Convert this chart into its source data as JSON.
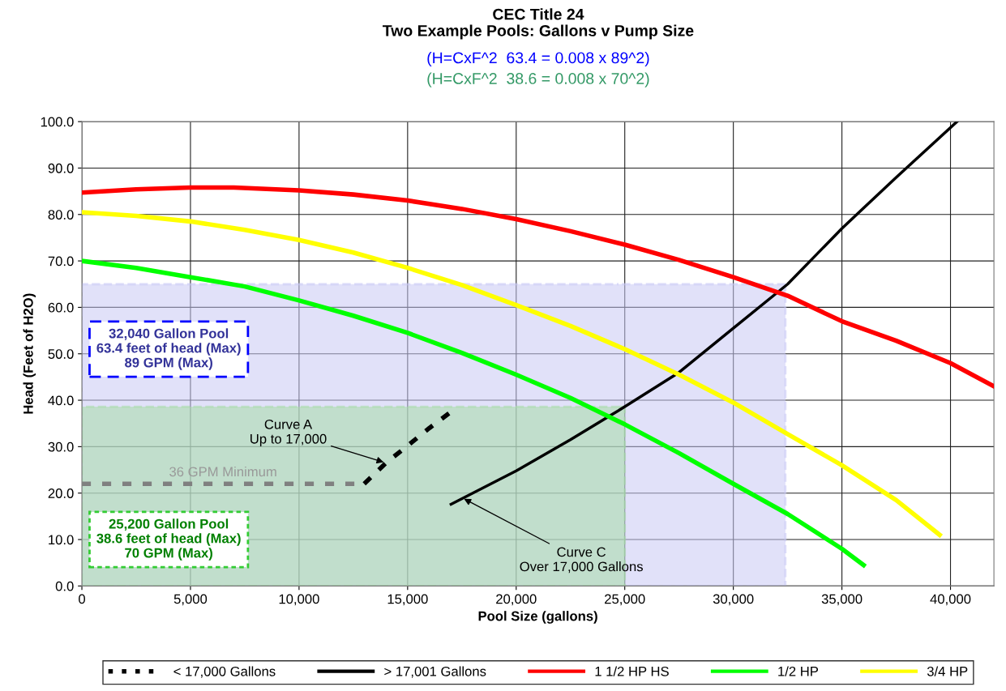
{
  "chart_data": {
    "type": "line",
    "title": "CEC Title 24\nTwo Example Pools: Gallons v Pump Size",
    "subtitle": "(H=CxF^2  63.4 = 0.008 x 89^2)\n(H=CxF^2  38.6 = 0.008 x 70^2)",
    "xlabel": "Pool Size (gallons)",
    "ylabel": "Head (Feet of H2O)",
    "xlim": [
      0,
      42000
    ],
    "xticks": [
      0,
      {
        "value": 5000,
        "label": "5,000"
      },
      {
        "value": 10000,
        "label": "10,000"
      },
      {
        "value": 15000,
        "label": "15,000"
      },
      {
        "value": 20000,
        "label": "20,000"
      },
      {
        "value": 25000,
        "label": "25,000"
      },
      {
        "value": 30000,
        "label": "30,000"
      },
      {
        "value": 35000,
        "label": "35,000"
      },
      {
        "value": 40000,
        "label": "40,000"
      }
    ],
    "ylim": [
      0,
      100
    ],
    "yticks": [
      {
        "value": 0,
        "label": "0.0"
      },
      {
        "value": 10,
        "label": "10.0"
      },
      {
        "value": 20,
        "label": "20.0"
      },
      {
        "value": 30,
        "label": "30.0"
      },
      {
        "value": 40,
        "label": "40.0"
      },
      {
        "value": 50,
        "label": "50.0"
      },
      {
        "value": 60,
        "label": "60.0"
      },
      {
        "value": 70,
        "label": "70.0"
      },
      {
        "value": 80,
        "label": "80.0"
      },
      {
        "value": 90,
        "label": "90.0"
      },
      {
        "value": 100,
        "label": "100.0"
      }
    ],
    "grid": true,
    "legend": "bottom",
    "series": [
      {
        "type": "area",
        "color": "#c8c8f4",
        "x": [
          0,
          32400
        ],
        "values": [
          65,
          65
        ]
      },
      {
        "type": "area",
        "color": "#a8dca8",
        "x": [
          0,
          25000
        ],
        "values": [
          38.6,
          38.6
        ]
      },
      {
        "color": "#808080",
        "line_style": "dashed",
        "x": [
          0,
          13000
        ],
        "values": [
          22,
          22
        ]
      },
      {
        "name": "< 17,000 Gallons",
        "color": "#000000",
        "line_style": "dashed",
        "x": [
          13000,
          14000,
          15000,
          16000,
          17000
        ],
        "values": [
          22,
          26.5,
          30.2,
          34,
          37.5
        ]
      },
      {
        "name": "> 17,001 Gallons",
        "color": "#000000",
        "x": [
          17000,
          20000,
          22500,
          25000,
          27500,
          30000,
          32500,
          35000,
          37500,
          40300
        ],
        "values": [
          17.6,
          24.8,
          31.5,
          38.6,
          46,
          55.5,
          65,
          77,
          88,
          100
        ]
      },
      {
        "name": "1 1/2 HP HS",
        "color": "#ff0000",
        "x": [
          0,
          2500,
          5000,
          7000,
          10000,
          12500,
          15000,
          17500,
          20000,
          22500,
          25000,
          27500,
          30000,
          32500,
          35000,
          37500,
          40000,
          42000
        ],
        "values": [
          84.7,
          85.4,
          85.8,
          85.8,
          85.2,
          84.3,
          83,
          81.2,
          79,
          76.4,
          73.5,
          70.2,
          66.5,
          62.5,
          57,
          52.8,
          48,
          43
        ]
      },
      {
        "name": "1/2 HP",
        "color": "#00ff00",
        "x": [
          0,
          2500,
          5000,
          7500,
          10000,
          12500,
          15000,
          17500,
          20000,
          22500,
          25000,
          27500,
          30000,
          32500,
          35000,
          36000
        ],
        "values": [
          70,
          68.5,
          66.5,
          64.5,
          61.5,
          58.2,
          54.5,
          50.2,
          45.5,
          40.5,
          34.8,
          28.6,
          22,
          15.5,
          8,
          4.5
        ]
      },
      {
        "name": "3/4 HP",
        "color": "#ffff00",
        "x": [
          0,
          2500,
          5000,
          7500,
          10000,
          12500,
          15000,
          17500,
          20000,
          22500,
          25000,
          27500,
          30000,
          32500,
          35000,
          37500,
          39500
        ],
        "values": [
          80.5,
          79.7,
          78.5,
          76.7,
          74.5,
          71.8,
          68.5,
          64.8,
          60.5,
          56,
          51,
          45.5,
          39.5,
          32.7,
          26,
          18.5,
          11
        ]
      }
    ],
    "annotations": [
      "32,040 Gallon Pool\n63.4 feet of head (Max)\n89 GPM (Max)",
      "25,200 Gallon Pool\n38.6 feet of head (Max)\n70 GPM (Max)",
      {
        "text": "36 GPM Minimum",
        "x": 6500,
        "y": 22
      },
      {
        "text": "Curve A\nUp to 17,000",
        "x": 14000,
        "y": 26.5
      },
      {
        "text": "Curve C\nOver 17,000 Gallons",
        "x": 17500,
        "y": 19
      }
    ]
  }
}
